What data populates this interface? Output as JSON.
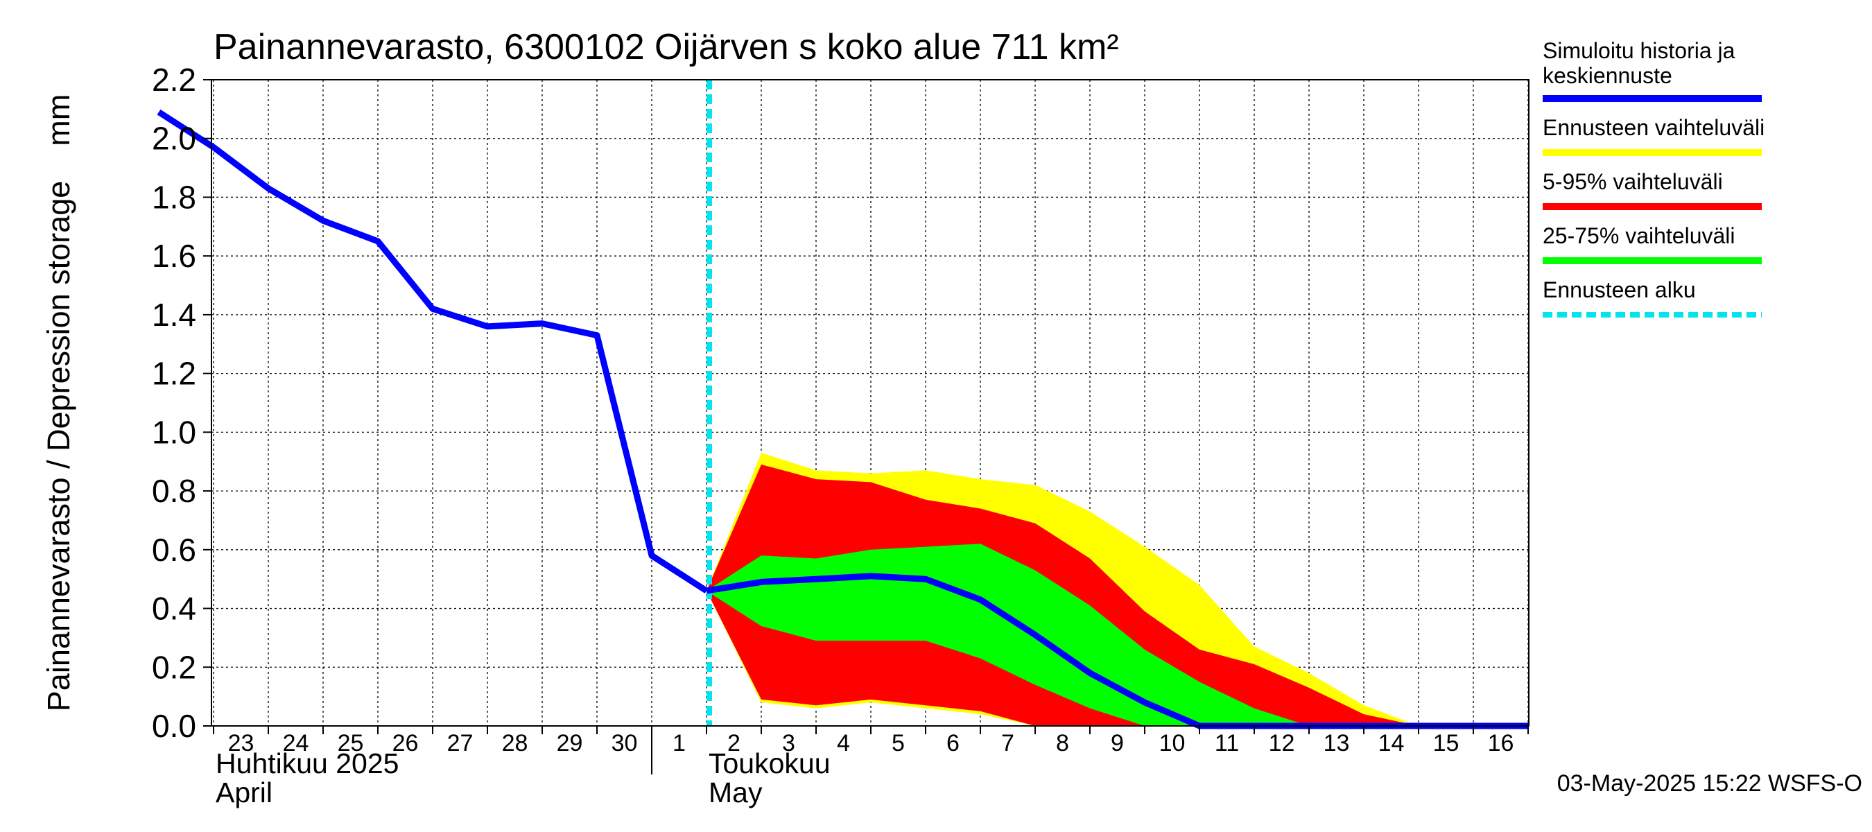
{
  "chart_data": {
    "type": "area",
    "title": "Painannevarasto, 6300102 Oijärven s koko alue 711 km²",
    "ylabel": "Painannevarasto / Depression storage    mm",
    "ylim": [
      0.0,
      2.2
    ],
    "y_ticks": [
      "0.0",
      "0.2",
      "0.4",
      "0.6",
      "0.8",
      "1.0",
      "1.2",
      "1.4",
      "1.6",
      "1.8",
      "2.0",
      "2.2"
    ],
    "x_day_labels": [
      "23",
      "24",
      "25",
      "26",
      "27",
      "28",
      "29",
      "30",
      "1",
      "2",
      "3",
      "4",
      "5",
      "6",
      "7",
      "8",
      "9",
      "10",
      "11",
      "12",
      "13",
      "14",
      "15",
      "16"
    ],
    "x_dates": [
      "2025-04-23",
      "2025-04-24",
      "2025-04-25",
      "2025-04-26",
      "2025-04-27",
      "2025-04-28",
      "2025-04-29",
      "2025-04-30",
      "2025-05-01",
      "2025-05-02",
      "2025-05-03",
      "2025-05-04",
      "2025-05-05",
      "2025-05-06",
      "2025-05-07",
      "2025-05-08",
      "2025-05-09",
      "2025-05-10",
      "2025-05-11",
      "2025-05-12",
      "2025-05-13",
      "2025-05-14",
      "2025-05-15",
      "2025-05-16",
      "2025-05-17"
    ],
    "month_labels": [
      {
        "line1": "Huhtikuu  2025",
        "line2": "April"
      },
      {
        "line1": "Toukokuu",
        "line2": "May"
      }
    ],
    "grid": true,
    "forecast_start": "2025-05-02",
    "history": {
      "name": "Simuloitu historia ja keskiennuste",
      "color": "#0000ff",
      "x": [
        "2025-04-22",
        "2025-04-23",
        "2025-04-24",
        "2025-04-25",
        "2025-04-26",
        "2025-04-27",
        "2025-04-28",
        "2025-04-29",
        "2025-04-30",
        "2025-05-01",
        "2025-05-02"
      ],
      "y": [
        2.09,
        1.97,
        1.83,
        1.72,
        1.65,
        1.42,
        1.36,
        1.37,
        1.33,
        0.58,
        0.46
      ]
    },
    "forecast": {
      "x": [
        "2025-05-02",
        "2025-05-03",
        "2025-05-04",
        "2025-05-05",
        "2025-05-06",
        "2025-05-07",
        "2025-05-08",
        "2025-05-09",
        "2025-05-10",
        "2025-05-11",
        "2025-05-12",
        "2025-05-13",
        "2025-05-14",
        "2025-05-15",
        "2025-05-16"
      ],
      "median": [
        0.46,
        0.49,
        0.5,
        0.51,
        0.5,
        0.43,
        0.31,
        0.18,
        0.08,
        0.0,
        0.0,
        0.0,
        0.0,
        0.0,
        0.0
      ],
      "range_min": [
        0.46,
        0.08,
        0.06,
        0.08,
        0.06,
        0.04,
        0.0,
        0.0,
        0.0,
        0.0,
        0.0,
        0.0,
        0.0,
        0.0,
        0.0
      ],
      "range_max": [
        0.46,
        0.93,
        0.87,
        0.86,
        0.87,
        0.84,
        0.82,
        0.73,
        0.61,
        0.48,
        0.27,
        0.18,
        0.07,
        0.0,
        0.0
      ],
      "p5": [
        0.46,
        0.09,
        0.07,
        0.09,
        0.07,
        0.05,
        0.0,
        0.0,
        0.0,
        0.0,
        0.0,
        0.0,
        0.0,
        0.0,
        0.0
      ],
      "p95": [
        0.46,
        0.89,
        0.84,
        0.83,
        0.77,
        0.74,
        0.69,
        0.57,
        0.39,
        0.26,
        0.21,
        0.13,
        0.04,
        0.0,
        0.0
      ],
      "p25": [
        0.46,
        0.34,
        0.29,
        0.29,
        0.29,
        0.23,
        0.14,
        0.06,
        0.0,
        0.0,
        0.0,
        0.0,
        0.0,
        0.0,
        0.0
      ],
      "p75": [
        0.46,
        0.58,
        0.57,
        0.6,
        0.61,
        0.62,
        0.53,
        0.41,
        0.26,
        0.15,
        0.06,
        0.0,
        0.0,
        0.0,
        0.0
      ]
    },
    "legend": [
      {
        "label": "Simuloitu historia ja keskiennuste",
        "color": "#0000ff",
        "style": "line"
      },
      {
        "label": "Ennusteen vaihteluväli",
        "color": "#ffff00",
        "style": "band"
      },
      {
        "label": "5-95% vaihteluväli",
        "color": "#ff0000",
        "style": "band"
      },
      {
        "label": "25-75% vaihteluväli",
        "color": "#00ff00",
        "style": "band"
      },
      {
        "label": "Ennusteen alku",
        "color": "#00ffff",
        "style": "dashed"
      }
    ],
    "legend_position": "right",
    "footer": "03-May-2025 15:22 WSFS-O"
  }
}
